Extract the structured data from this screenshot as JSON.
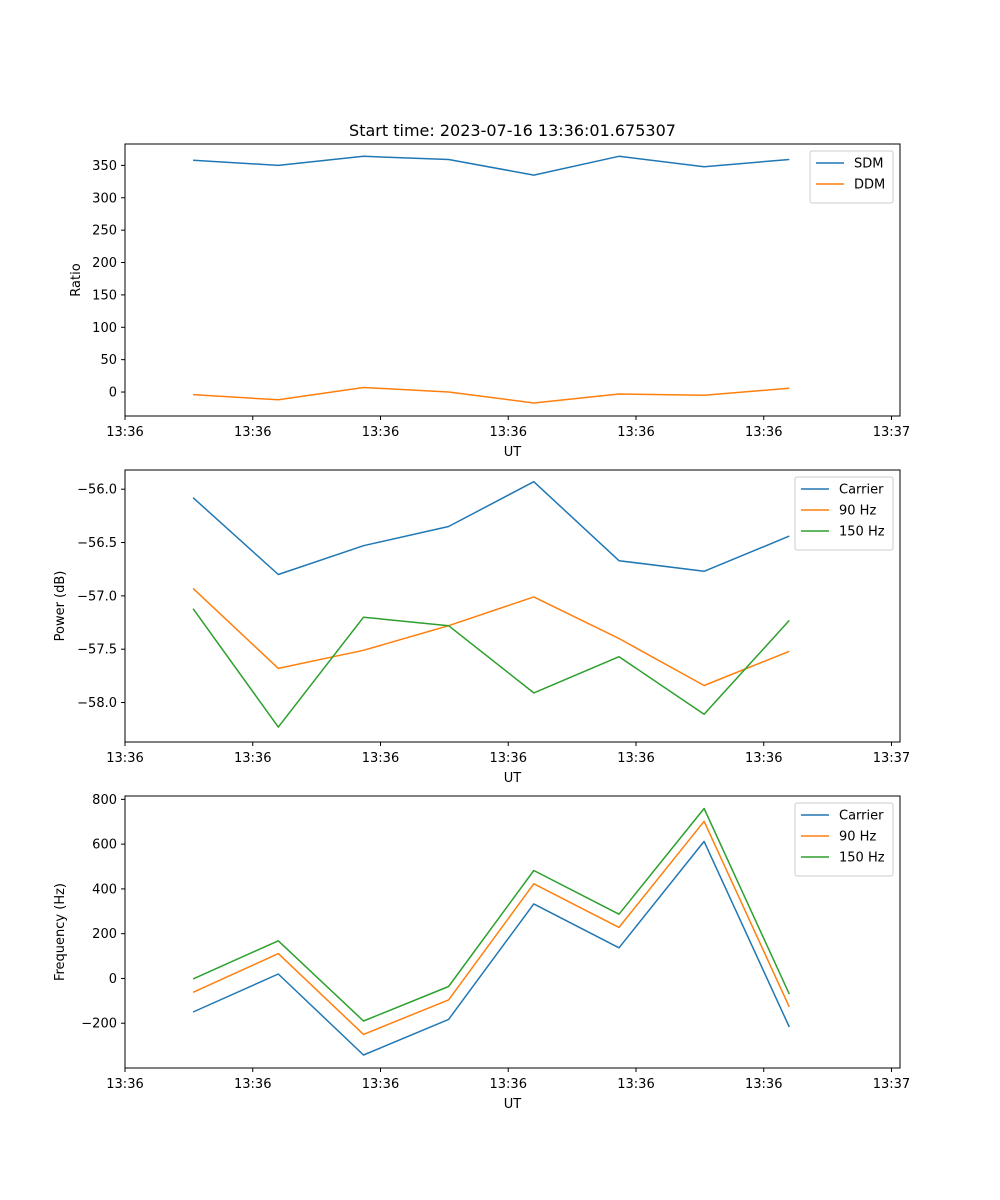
{
  "figure": {
    "title": "Start time: 2023-07-16 13:36:01.675307"
  },
  "chart_data": [
    {
      "type": "line",
      "title": "Start time: 2023-07-16 13:36:01.675307",
      "xlabel": "UT",
      "ylabel": "Ratio",
      "x": [
        1,
        2,
        3,
        4,
        5,
        6,
        7,
        8
      ],
      "xlim": [
        0.2,
        9.3
      ],
      "xticks": [
        0.2,
        1.7,
        3.2,
        4.7,
        6.2,
        7.7,
        9.2
      ],
      "xtick_labels": [
        "13:36",
        "13:36",
        "13:36",
        "13:36",
        "13:36",
        "13:36",
        "13:37"
      ],
      "ylim": [
        -37,
        383
      ],
      "yticks": [
        0,
        50,
        100,
        150,
        200,
        250,
        300,
        350
      ],
      "ytick_labels": [
        "0",
        "50",
        "100",
        "150",
        "200",
        "250",
        "300",
        "350"
      ],
      "legend": "top-right",
      "series": [
        {
          "name": "SDM",
          "color": "#1f77b4",
          "values": [
            358,
            350,
            364,
            359,
            335,
            364,
            348,
            359
          ]
        },
        {
          "name": "DDM",
          "color": "#ff7f0e",
          "values": [
            -4,
            -12,
            7,
            0,
            -17,
            -3,
            -5,
            6
          ]
        }
      ]
    },
    {
      "type": "line",
      "title": "",
      "xlabel": "UT",
      "ylabel": "Power (dB)",
      "x": [
        1,
        2,
        3,
        4,
        5,
        6,
        7,
        8
      ],
      "xlim": [
        0.2,
        9.3
      ],
      "xticks": [
        0.2,
        1.7,
        3.2,
        4.7,
        6.2,
        7.7,
        9.2
      ],
      "xtick_labels": [
        "13:36",
        "13:36",
        "13:36",
        "13:36",
        "13:36",
        "13:36",
        "13:37"
      ],
      "ylim": [
        -58.37,
        -55.82
      ],
      "yticks": [
        -56.0,
        -56.5,
        -57.0,
        -57.5,
        -58.0
      ],
      "ytick_labels": [
        "−56.0",
        "−56.5",
        "−57.0",
        "−57.5",
        "−58.0"
      ],
      "legend": "top-right",
      "series": [
        {
          "name": "Carrier",
          "color": "#1f77b4",
          "values": [
            -56.08,
            -56.8,
            -56.53,
            -56.35,
            -55.93,
            -56.67,
            -56.77,
            -56.44
          ]
        },
        {
          "name": "90 Hz",
          "color": "#ff7f0e",
          "values": [
            -56.93,
            -57.68,
            -57.51,
            -57.28,
            -57.01,
            -57.4,
            -57.84,
            -57.52
          ]
        },
        {
          "name": "150 Hz",
          "color": "#2ca02c",
          "values": [
            -57.12,
            -58.23,
            -57.2,
            -57.28,
            -57.91,
            -57.57,
            -58.11,
            -57.23
          ]
        }
      ]
    },
    {
      "type": "line",
      "title": "",
      "xlabel": "UT",
      "ylabel": "Frequency (Hz)",
      "x": [
        1,
        2,
        3,
        4,
        5,
        6,
        7,
        8
      ],
      "xlim": [
        0.2,
        9.3
      ],
      "xticks": [
        0.2,
        1.7,
        3.2,
        4.7,
        6.2,
        7.7,
        9.2
      ],
      "xtick_labels": [
        "13:36",
        "13:36",
        "13:36",
        "13:36",
        "13:36",
        "13:36",
        "13:37"
      ],
      "ylim": [
        -400,
        815
      ],
      "yticks": [
        -200,
        0,
        200,
        400,
        600,
        800
      ],
      "ytick_labels": [
        "−200",
        "0",
        "200",
        "400",
        "600",
        "800"
      ],
      "legend": "top-right",
      "series": [
        {
          "name": "Carrier",
          "color": "#1f77b4",
          "values": [
            -150,
            20,
            -342,
            -183,
            333,
            137,
            612,
            -217
          ]
        },
        {
          "name": "90 Hz",
          "color": "#ff7f0e",
          "values": [
            -62,
            111,
            -250,
            -96,
            423,
            228,
            702,
            -127
          ]
        },
        {
          "name": "150 Hz",
          "color": "#2ca02c",
          "values": [
            -2,
            168,
            -190,
            -36,
            482,
            287,
            759,
            -70
          ]
        }
      ]
    }
  ]
}
